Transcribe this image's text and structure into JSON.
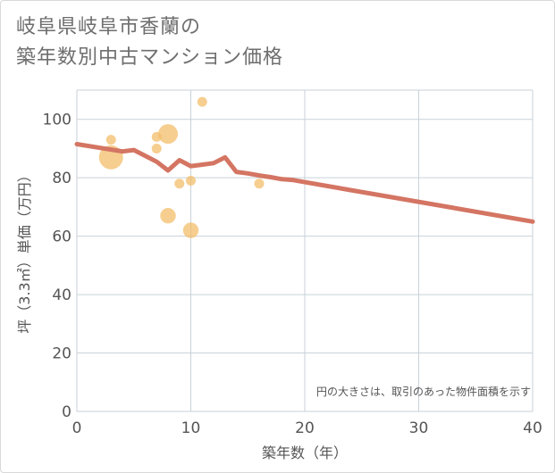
{
  "chart_data": {
    "type": "scatter+line",
    "title_lines": [
      "岐阜県岐阜市香蘭の",
      "築年数別中古マンション価格"
    ],
    "xlabel": "築年数（年）",
    "ylabel": "坪（3.3㎡）単価（万円）",
    "xlim": [
      0,
      40
    ],
    "ylim": [
      0,
      110
    ],
    "x_ticks": [
      0,
      10,
      20,
      30,
      40
    ],
    "y_ticks": [
      0,
      20,
      40,
      60,
      80,
      100
    ],
    "grid": true,
    "note": "円の大きさは、取引のあった物件面積を示す",
    "colors": {
      "bubble": "#f3bd6a",
      "line": "#d47563",
      "grid": "#c8d2d8",
      "text": "#555555"
    },
    "bubbles": [
      {
        "x": 3,
        "y": 93,
        "size": 1
      },
      {
        "x": 3,
        "y": 87,
        "size": 6
      },
      {
        "x": 7,
        "y": 94,
        "size": 1
      },
      {
        "x": 7,
        "y": 90,
        "size": 1
      },
      {
        "x": 8,
        "y": 95,
        "size": 4
      },
      {
        "x": 8,
        "y": 67,
        "size": 2.5
      },
      {
        "x": 9,
        "y": 78,
        "size": 1
      },
      {
        "x": 10,
        "y": 79,
        "size": 1
      },
      {
        "x": 10,
        "y": 62,
        "size": 2.5
      },
      {
        "x": 11,
        "y": 106,
        "size": 1
      },
      {
        "x": 16,
        "y": 78,
        "size": 1
      }
    ],
    "trend_line": {
      "x": [
        0,
        4,
        5,
        6,
        7,
        8,
        9,
        10,
        11,
        12,
        13,
        14,
        15,
        16,
        17,
        18,
        19,
        20,
        40
      ],
      "y": [
        91.5,
        89,
        89.5,
        87.5,
        85.5,
        82.5,
        86,
        84,
        84.5,
        85,
        87,
        82,
        81.5,
        80.8,
        80.2,
        79.5,
        79.2,
        78.5,
        65
      ]
    }
  }
}
